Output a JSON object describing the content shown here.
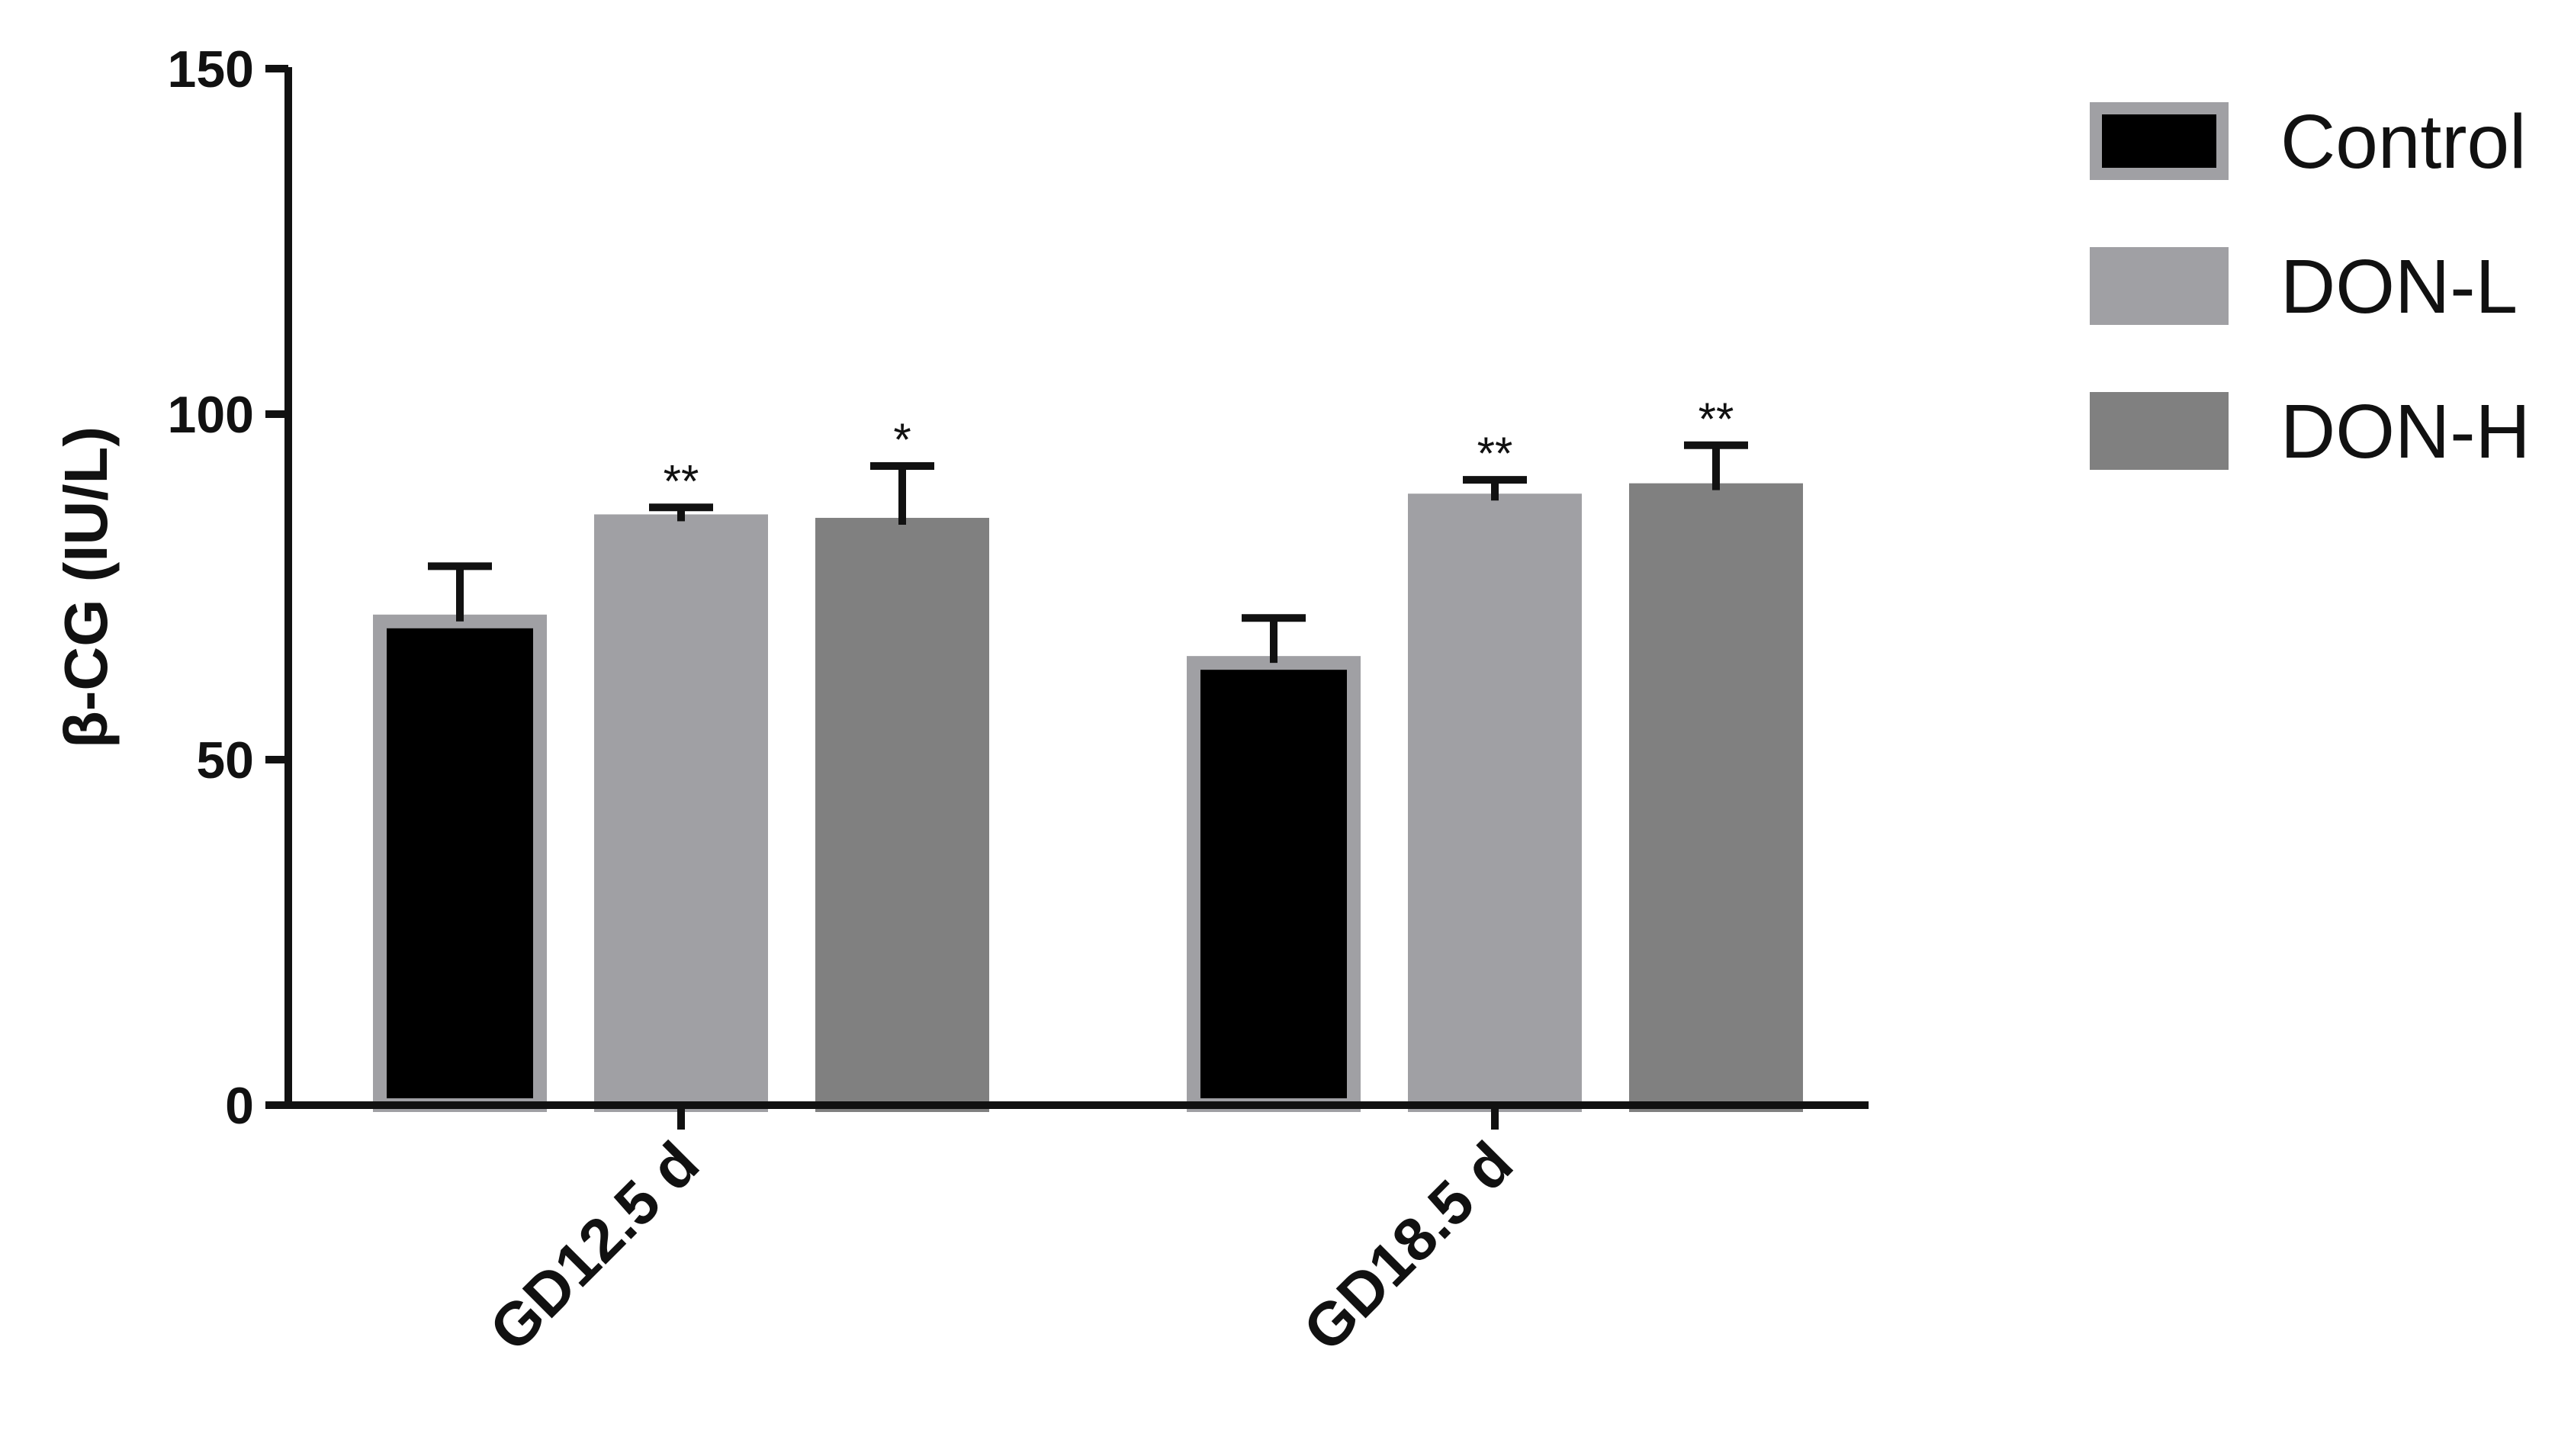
{
  "chart_data": {
    "type": "bar",
    "title": "",
    "xlabel": "",
    "ylabel": "β-CG (IU/L)",
    "ylim": [
      0,
      150
    ],
    "yticks": [
      0,
      50,
      100,
      150
    ],
    "ytick_labels": [
      "0",
      "50",
      "100",
      "150"
    ],
    "categories": [
      "GD12.5 d",
      "GD18.5 d"
    ],
    "series": [
      {
        "name": "Control",
        "values": [
          70,
          64
        ],
        "errors": [
          8,
          6.5
        ],
        "annotations": [
          "",
          ""
        ],
        "color": "#000000",
        "outline": "#a0a0a4"
      },
      {
        "name": "DON-L",
        "values": [
          84.5,
          87.5
        ],
        "errors": [
          2,
          3
        ],
        "annotations": [
          "**",
          "**"
        ],
        "color": "#a0a0a4",
        "outline": "#a0a0a4"
      },
      {
        "name": "DON-H",
        "values": [
          84,
          89
        ],
        "errors": [
          8.5,
          6.5
        ],
        "annotations": [
          "*",
          "**"
        ],
        "color": "#808080",
        "outline": "#808080"
      }
    ],
    "grid": false,
    "legend_position": "top-right"
  }
}
